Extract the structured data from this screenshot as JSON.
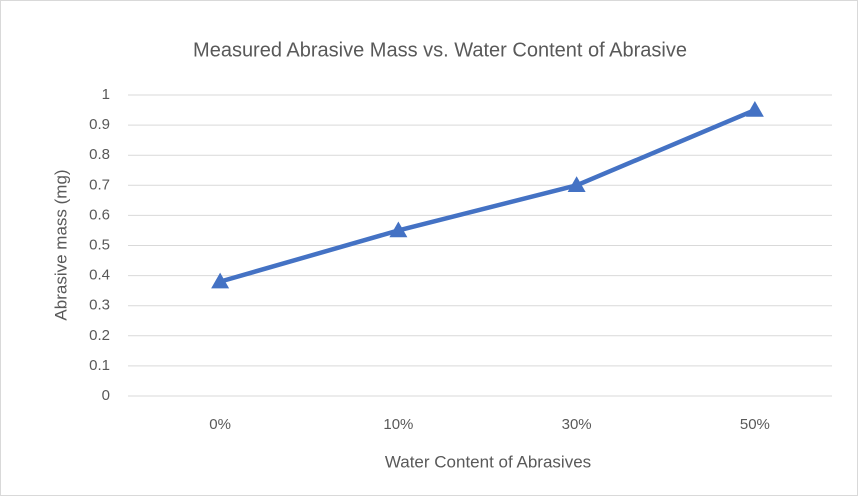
{
  "chart_data": {
    "type": "line",
    "title": "Measured Abrasive Mass vs. Water Content of Abrasive",
    "x_label": "Water Content of Abrasives",
    "y_label": "Abrasive mass (mg)",
    "categories": [
      "0%",
      "10%",
      "30%",
      "50%"
    ],
    "values": [
      0.38,
      0.55,
      0.7,
      0.95
    ],
    "color": "#4472c4",
    "marker": "triangle",
    "ylim": [
      0,
      1
    ],
    "yticks": [
      0,
      0.1,
      0.2,
      0.3,
      0.4,
      0.5,
      0.6,
      0.7,
      0.8,
      0.9,
      1
    ],
    "grid": true
  }
}
